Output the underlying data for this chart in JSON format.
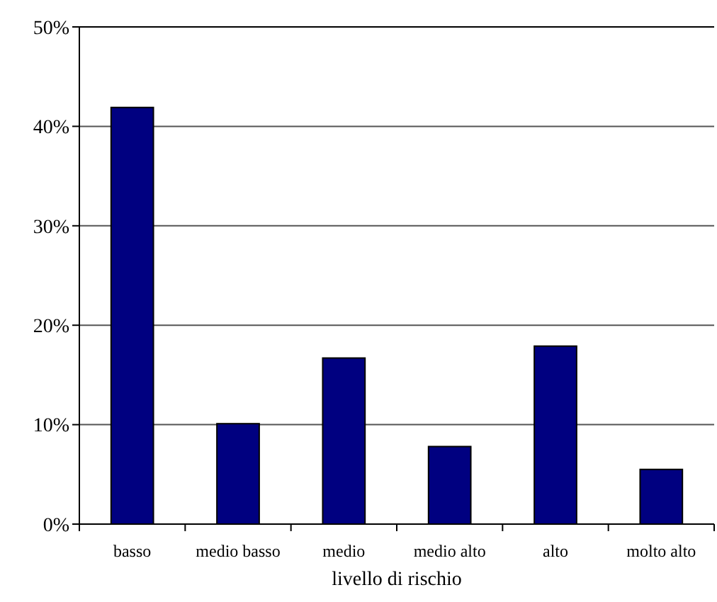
{
  "chart_data": {
    "type": "bar",
    "xlabel": "livello di rischio",
    "categories": [
      "basso",
      "medio basso",
      "medio",
      "medio alto",
      "alto",
      "molto alto"
    ],
    "values": [
      41.9,
      10.1,
      16.7,
      7.8,
      17.9,
      5.5
    ],
    "color": "#000080",
    "ylim": [
      0,
      50
    ],
    "yticks": [
      {
        "value": 0,
        "label": "0%"
      },
      {
        "value": 10,
        "label": "10%"
      },
      {
        "value": 20,
        "label": "20%"
      },
      {
        "value": 30,
        "label": "30%"
      },
      {
        "value": 40,
        "label": "40%"
      },
      {
        "value": 50,
        "label": "50%"
      }
    ],
    "grid": "y"
  }
}
